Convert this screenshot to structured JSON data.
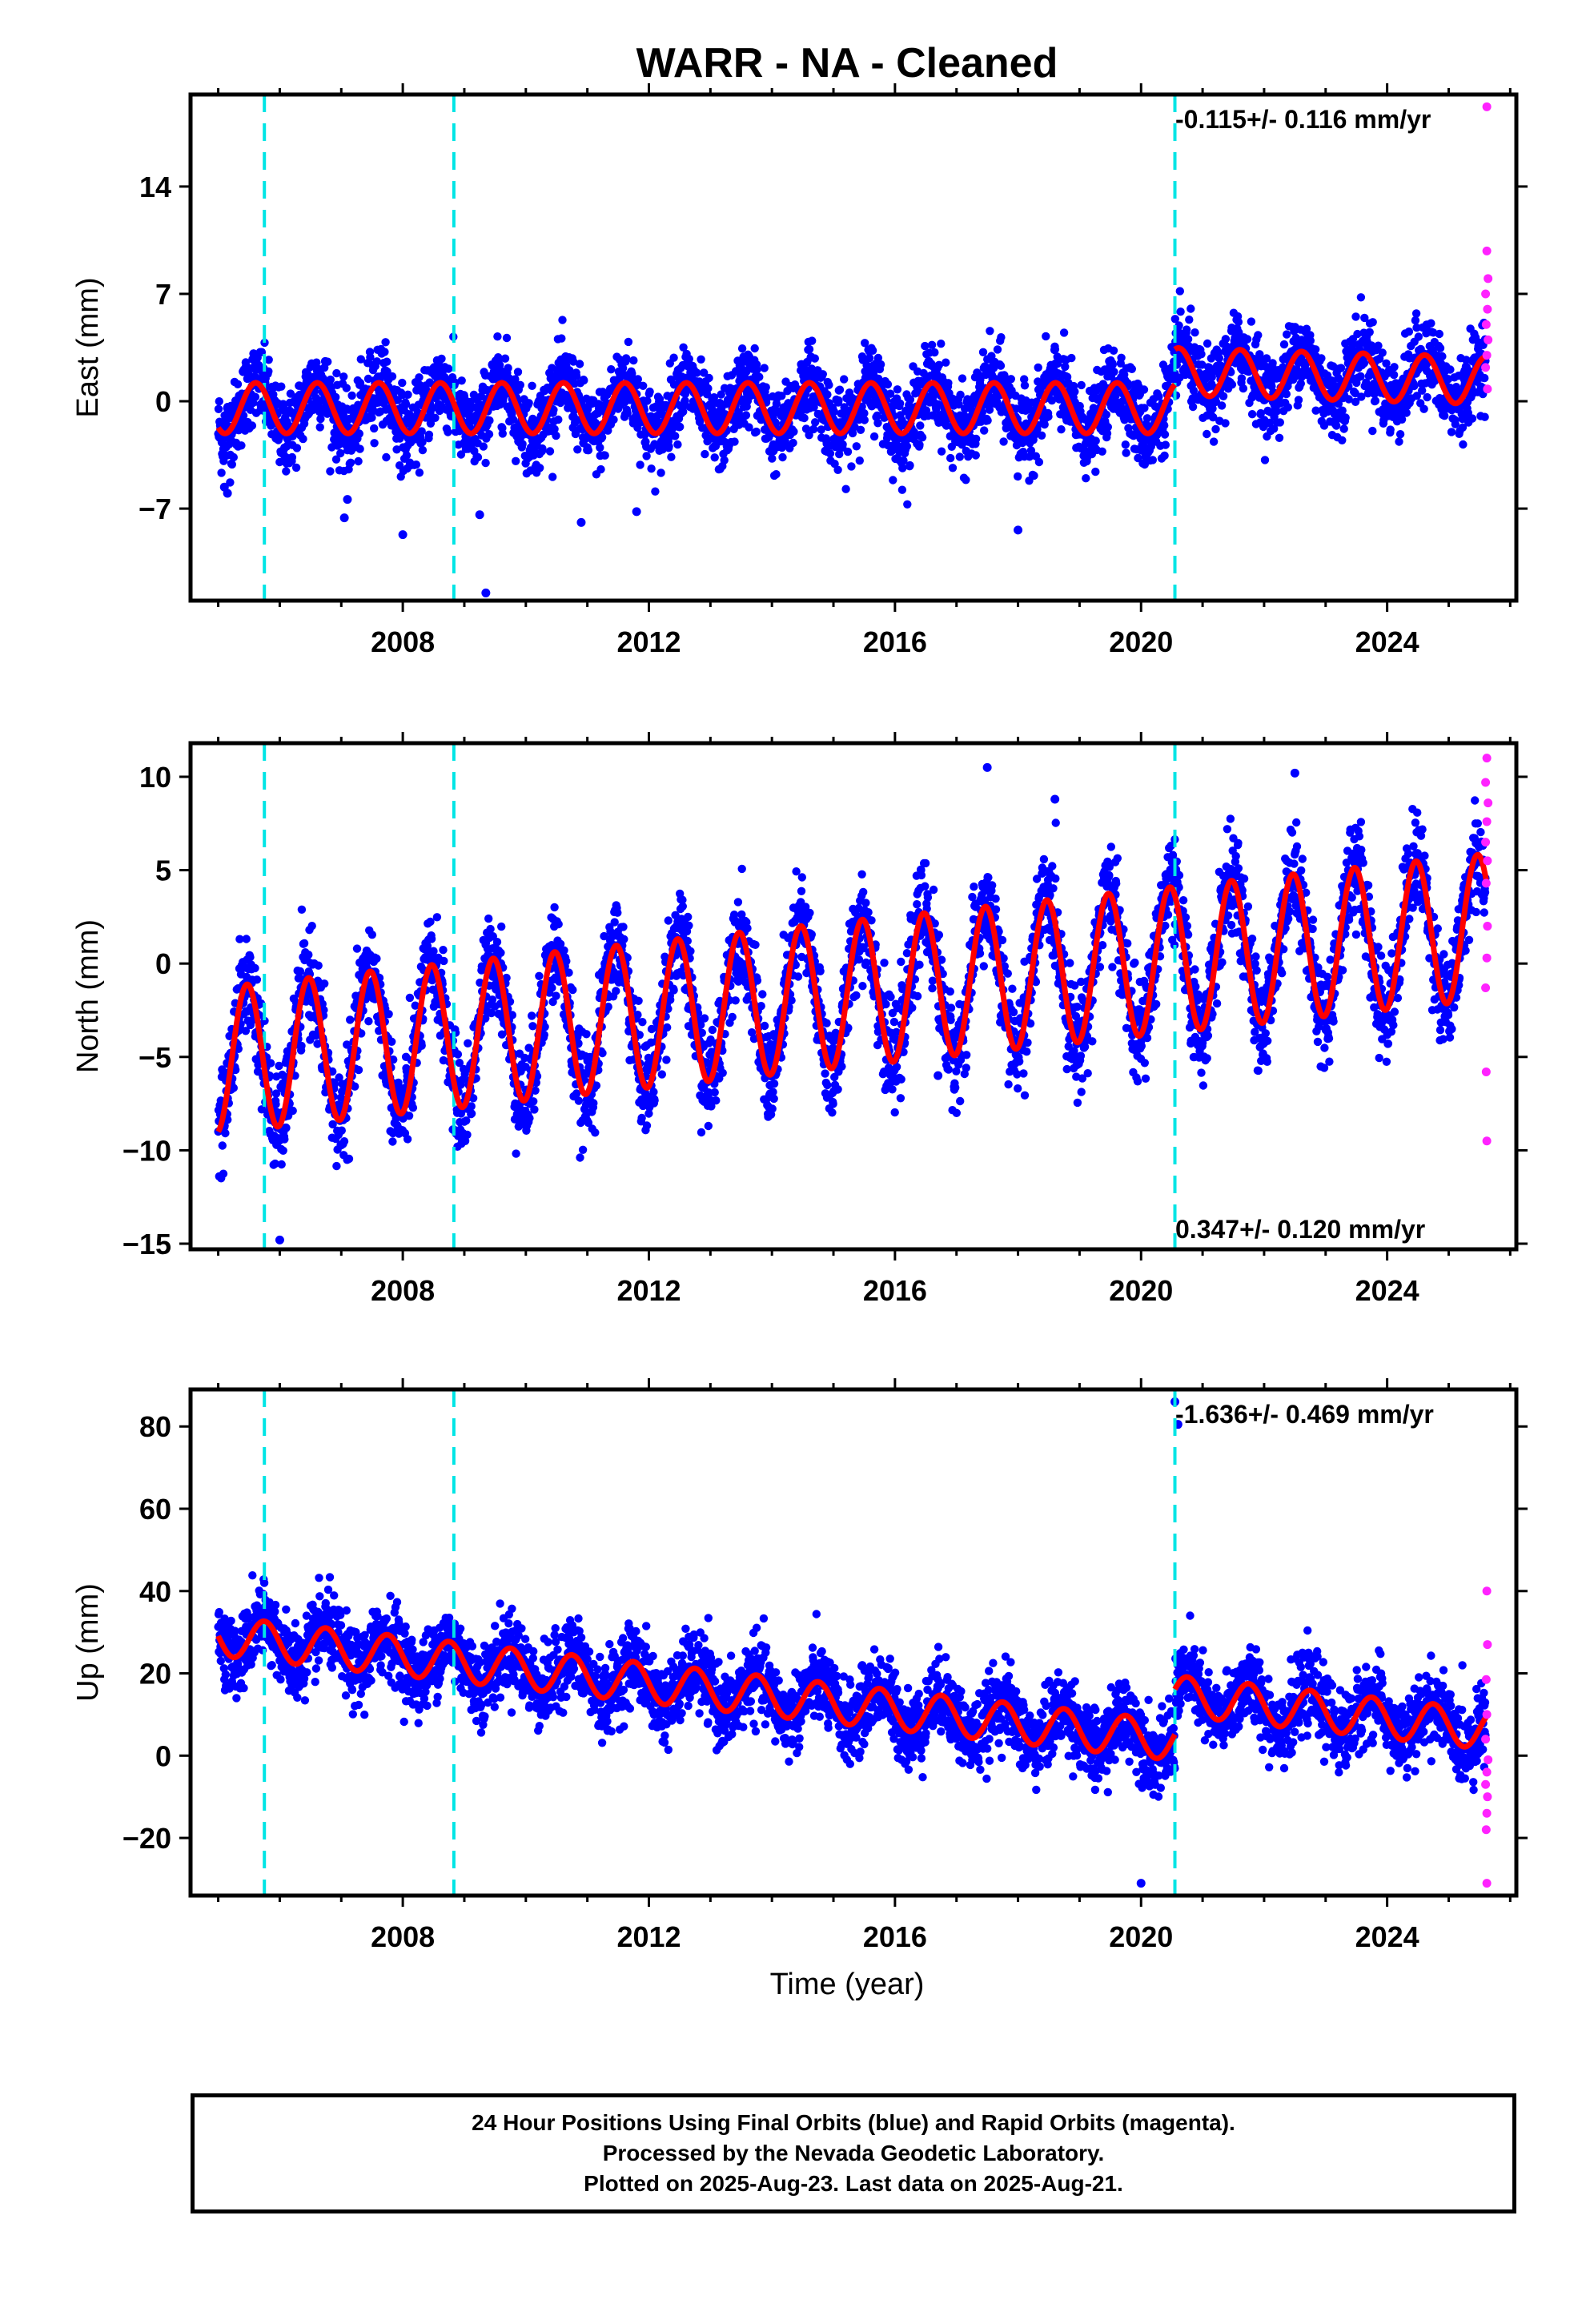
{
  "title": "WARR  - NA - Cleaned",
  "xlabel": "Time (year)",
  "footer": {
    "line1": "24 Hour Positions Using Final Orbits (blue) and Rapid Orbits (magenta).",
    "line2": "Processed by the Nevada Geodetic Laboratory.",
    "line3": "Plotted on 2025-Aug-23. Last data on 2025-Aug-21."
  },
  "colors": {
    "final": "#0000ff",
    "rapid": "#ff22ff",
    "model": "#ff0000",
    "steps": "#00e5e5"
  },
  "chart_data": [
    {
      "type": "scatter",
      "component": "east",
      "ylabel": "East (mm)",
      "rate_text": "-0.115+/- 0.116 mm/yr",
      "rate_position": "top-right",
      "xlim": [
        2004.55,
        2026.1
      ],
      "ylim": [
        -13,
        20
      ],
      "xticks": [
        2008,
        2012,
        2016,
        2020,
        2024
      ],
      "yticks": [
        14,
        7,
        0,
        -7
      ],
      "step_epochs": [
        2005.75,
        2008.83,
        2020.55
      ],
      "model": {
        "segments": [
          {
            "from": 2005.0,
            "to": 2020.55,
            "offset": -0.45,
            "rate": 0.0,
            "amp": 1.65,
            "phase": 0.36
          },
          {
            "from": 2020.55,
            "to": 2025.62,
            "offset": 2.8,
            "rate": -0.115,
            "amp": 1.55,
            "phase": 0.36
          }
        ],
        "period_years": 1.0
      },
      "scatter_sd": 1.3,
      "outliers": [
        [
          2005.1,
          -5.6
        ],
        [
          2005.15,
          -6.0
        ],
        [
          2007.05,
          -7.6
        ],
        [
          2007.1,
          -6.4
        ],
        [
          2008.0,
          -8.7
        ],
        [
          2009.35,
          -12.5
        ],
        [
          2009.25,
          -7.4
        ],
        [
          2010.9,
          -7.9
        ],
        [
          2011.8,
          -7.2
        ],
        [
          2018.0,
          -8.4
        ]
      ],
      "rapid": [
        [
          2025.62,
          19.2
        ],
        [
          2025.62,
          9.8
        ],
        [
          2025.64,
          8.0
        ],
        [
          2025.6,
          7.0
        ],
        [
          2025.63,
          6.0
        ],
        [
          2025.61,
          5.0
        ],
        [
          2025.64,
          4.0
        ],
        [
          2025.62,
          3.0
        ],
        [
          2025.6,
          2.2
        ],
        [
          2025.63,
          0.8
        ]
      ]
    },
    {
      "type": "scatter",
      "component": "north",
      "ylabel": "North (mm)",
      "rate_text": "0.347+/- 0.120 mm/yr",
      "rate_position": "bottom-right",
      "xlim": [
        2004.55,
        2026.1
      ],
      "ylim": [
        -15.3,
        11.8
      ],
      "xticks": [
        2008,
        2012,
        2016,
        2020,
        2024
      ],
      "yticks": [
        10,
        5,
        0,
        -5,
        -10,
        -15
      ],
      "step_epochs": [
        2005.75,
        2008.83,
        2020.55
      ],
      "model": {
        "segments": [
          {
            "from": 2005.0,
            "to": 2025.62,
            "offset": -2.4,
            "rate": 0.347,
            "amp": 3.9,
            "phase": 0.22
          }
        ],
        "period_years": 1.0
      },
      "scatter_sd": 1.3,
      "outliers": [
        [
          2005.95,
          -9.7
        ],
        [
          2006.0,
          -14.8
        ],
        [
          2006.1,
          -8.8
        ],
        [
          2010.0,
          -8.5
        ],
        [
          2016.7,
          -6.0
        ],
        [
          2017.5,
          10.5
        ],
        [
          2018.6,
          8.8
        ],
        [
          2022.5,
          10.2
        ]
      ],
      "rapid": [
        [
          2025.62,
          11.0
        ],
        [
          2025.6,
          9.7
        ],
        [
          2025.64,
          8.6
        ],
        [
          2025.62,
          7.6
        ],
        [
          2025.6,
          6.5
        ],
        [
          2025.63,
          5.5
        ],
        [
          2025.61,
          4.3
        ],
        [
          2025.63,
          2.0
        ],
        [
          2025.62,
          0.3
        ],
        [
          2025.6,
          -1.3
        ],
        [
          2025.61,
          -5.8
        ],
        [
          2025.62,
          -9.5
        ]
      ]
    },
    {
      "type": "scatter",
      "component": "up",
      "ylabel": "Up (mm)",
      "rate_text": "-1.636+/- 0.469 mm/yr",
      "rate_position": "top-right",
      "xlim": [
        2004.55,
        2026.1
      ],
      "ylim": [
        -34,
        89
      ],
      "xticks": [
        2008,
        2012,
        2016,
        2020,
        2024
      ],
      "yticks": [
        80,
        60,
        40,
        20,
        0,
        -20
      ],
      "step_epochs": [
        2005.75,
        2008.83,
        2020.55
      ],
      "model": {
        "segments": [
          {
            "from": 2005.0,
            "to": 2020.55,
            "offset": 16.0,
            "rate": -1.636,
            "amp": 4.8,
            "phase": 0.5
          },
          {
            "from": 2020.55,
            "to": 2025.62,
            "offset": 27.0,
            "rate": -1.636,
            "amp": 4.8,
            "phase": 0.5
          }
        ],
        "period_years": 1.0
      },
      "scatter_sd": 4.6,
      "outliers": [
        [
          2020.55,
          86.0
        ],
        [
          2020.6,
          80.5
        ],
        [
          2007.7,
          33.0
        ],
        [
          2010.7,
          28.5
        ],
        [
          2020.0,
          -31.0
        ]
      ],
      "rapid": [
        [
          2025.62,
          40.0
        ],
        [
          2025.63,
          27.0
        ],
        [
          2025.61,
          18.5
        ],
        [
          2025.62,
          10.0
        ],
        [
          2025.6,
          4.0
        ],
        [
          2025.64,
          -1.0
        ],
        [
          2025.62,
          -4.0
        ],
        [
          2025.6,
          -7.0
        ],
        [
          2025.63,
          -10.0
        ],
        [
          2025.62,
          -14.0
        ],
        [
          2025.61,
          -18.0
        ],
        [
          2025.62,
          -31.0
        ]
      ]
    }
  ]
}
